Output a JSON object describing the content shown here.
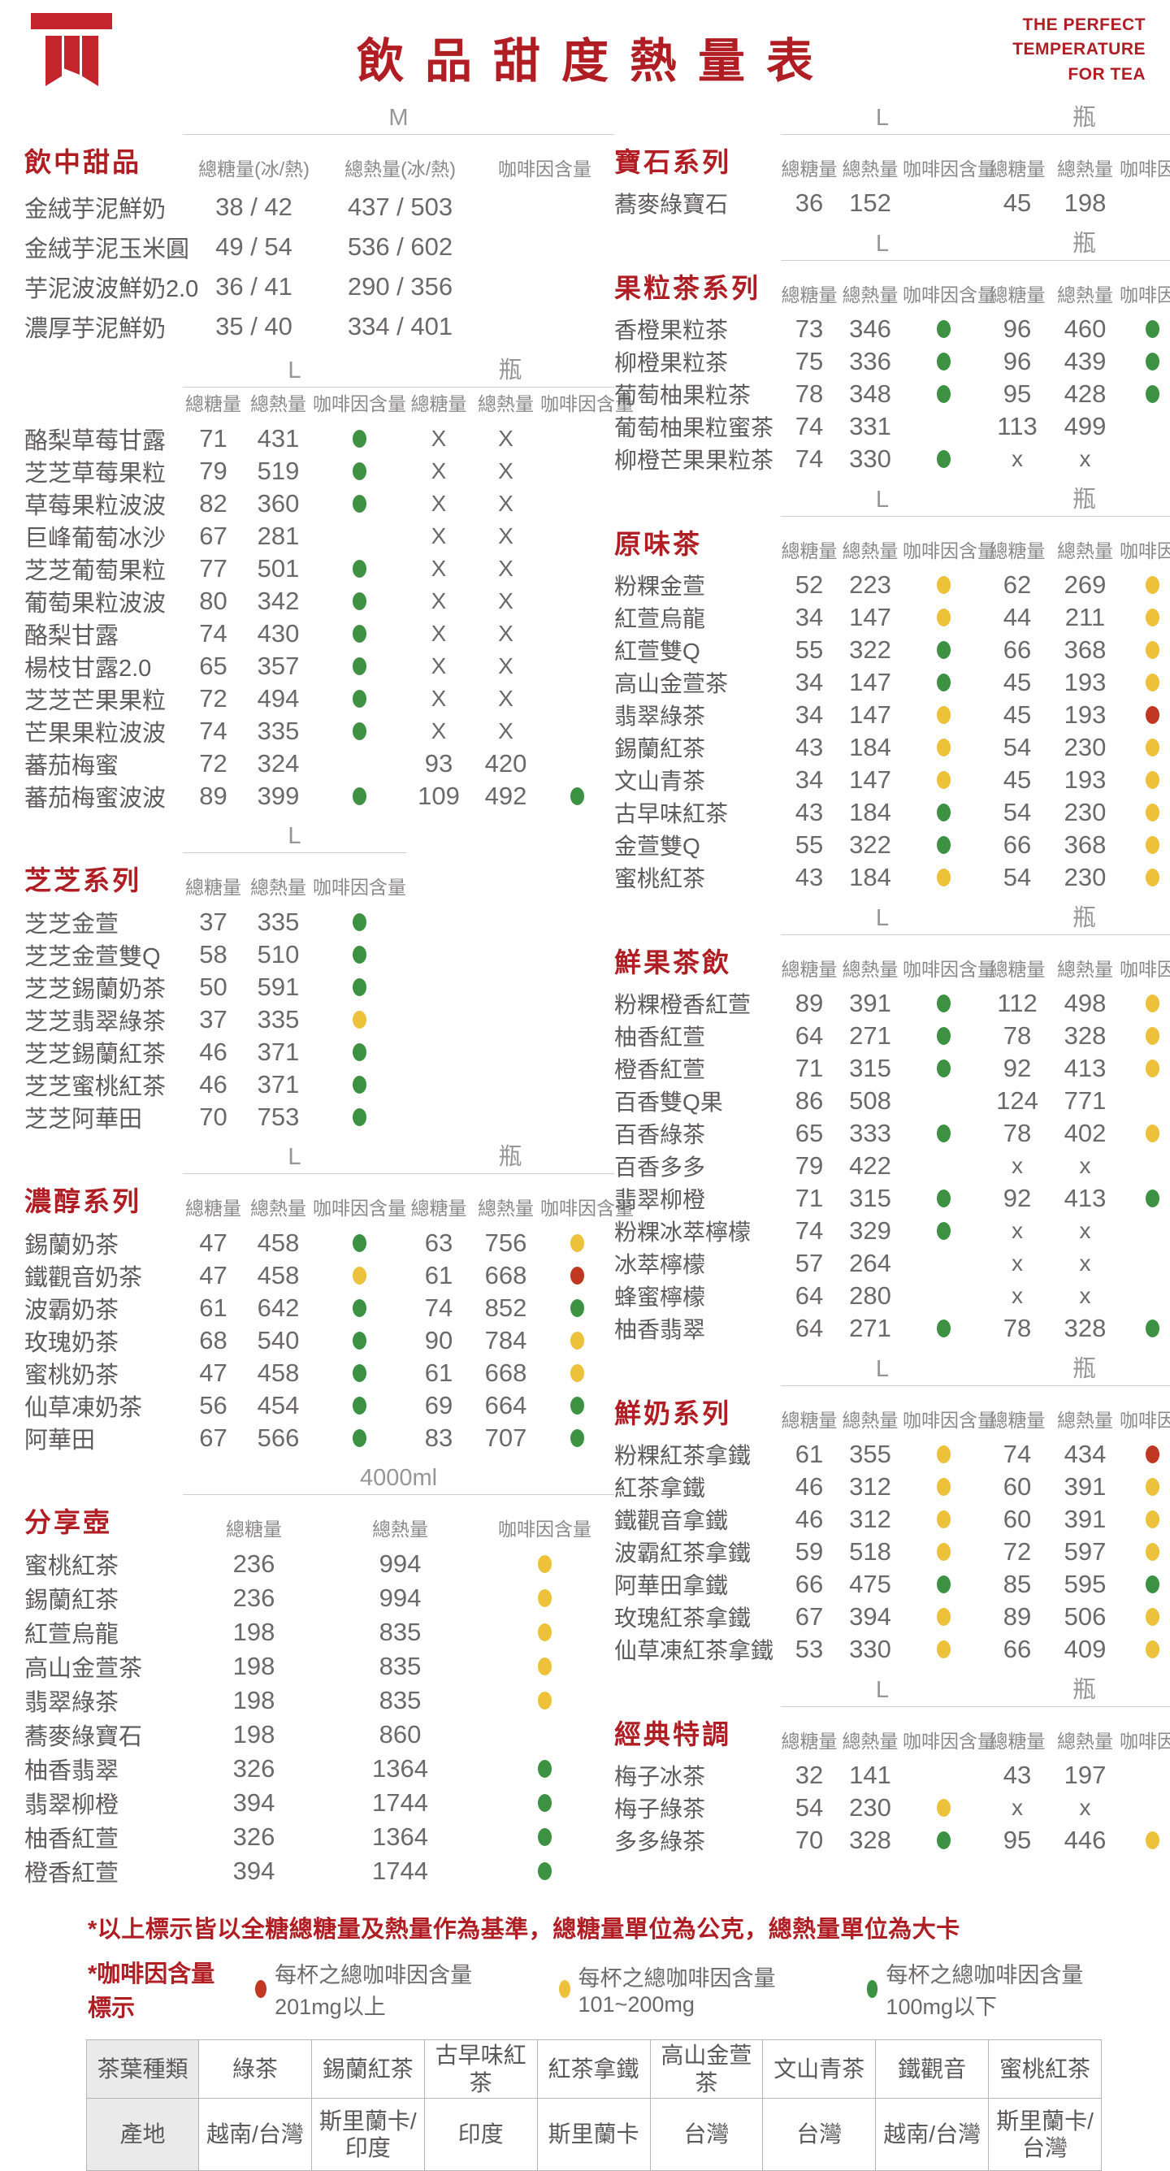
{
  "colors": {
    "brand_red": "#b01e24",
    "logo_red": "#c4242b",
    "g": "#3c9142",
    "y": "#eec13b",
    "r": "#c03722"
  },
  "header": {
    "title": "飲品甜度熱量表",
    "tagline": [
      "THE PERFECT",
      "TEMPERATURE",
      "FOR TEA"
    ]
  },
  "column_header_labels": {
    "sugar": "總糖量",
    "calorie": "總熱量",
    "caffeine": "咖啡因含量",
    "sugar_ih": "總糖量(冰/熱)",
    "calorie_ih": "總熱量(冰/熱)"
  },
  "left_sections": [
    {
      "title": "飲中甜品",
      "grid": "g-mw",
      "rowclass": "r-tall",
      "groups": [
        {
          "size": "M",
          "cols": [
            "總糖量(冰/熱)",
            "總熱量(冰/熱)",
            "咖啡因含量"
          ],
          "span": "2 / span 3"
        }
      ],
      "rows": [
        [
          "金絨芋泥鮮奶",
          "38 / 42",
          "437 / 503",
          ""
        ],
        [
          "金絨芋泥玉米圓",
          "49 / 54",
          "536 / 602",
          ""
        ],
        [
          "芋泥波波鮮奶2.0",
          "36 / 41",
          "290 / 356",
          ""
        ],
        [
          "濃厚芋泥鮮奶",
          "35 / 40",
          "334 / 401",
          ""
        ]
      ]
    },
    {
      "title": "",
      "grid": "g-ld",
      "rowclass": "",
      "groups": [
        {
          "size": "L",
          "cols": [
            "總糖量",
            "總熱量",
            "咖啡因含量"
          ],
          "span": "2 / span 3"
        },
        {
          "size": "瓶",
          "cols": [
            "總糖量",
            "總熱量",
            "咖啡因含量"
          ],
          "span": "5 / span 3"
        }
      ],
      "rows": [
        [
          "酪梨草莓甘露",
          "71",
          "431",
          "g",
          "X",
          "X",
          ""
        ],
        [
          "芝芝草莓果粒",
          "79",
          "519",
          "g",
          "X",
          "X",
          ""
        ],
        [
          "草莓果粒波波",
          "82",
          "360",
          "g",
          "X",
          "X",
          ""
        ],
        [
          "巨峰葡萄冰沙",
          "67",
          "281",
          "",
          "X",
          "X",
          ""
        ],
        [
          "芝芝葡萄果粒",
          "77",
          "501",
          "g",
          "X",
          "X",
          ""
        ],
        [
          "葡萄果粒波波",
          "80",
          "342",
          "g",
          "X",
          "X",
          ""
        ],
        [
          "酪梨甘露",
          "74",
          "430",
          "g",
          "X",
          "X",
          ""
        ],
        [
          "楊枝甘露2.0",
          "65",
          "357",
          "g",
          "X",
          "X",
          ""
        ],
        [
          "芝芝芒果果粒",
          "72",
          "494",
          "g",
          "X",
          "X",
          ""
        ],
        [
          "芒果果粒波波",
          "74",
          "335",
          "g",
          "X",
          "X",
          ""
        ],
        [
          "蕃茄梅蜜",
          "72",
          "324",
          "",
          "93",
          "420",
          ""
        ],
        [
          "蕃茄梅蜜波波",
          "89",
          "399",
          "g",
          "109",
          "492",
          "g"
        ]
      ]
    },
    {
      "title": "芝芝系列",
      "grid": "g-ls",
      "rowclass": "",
      "groups": [
        {
          "size": "L",
          "cols": [
            "總糖量",
            "總熱量",
            "咖啡因含量"
          ],
          "span": "2 / span 3"
        }
      ],
      "rows": [
        [
          "芝芝金萱",
          "37",
          "335",
          "g"
        ],
        [
          "芝芝金萱雙Q",
          "58",
          "510",
          "g"
        ],
        [
          "芝芝錫蘭奶茶",
          "50",
          "591",
          "g"
        ],
        [
          "芝芝翡翠綠茶",
          "37",
          "335",
          "y"
        ],
        [
          "芝芝錫蘭紅茶",
          "46",
          "371",
          "g"
        ],
        [
          "芝芝蜜桃紅茶",
          "46",
          "371",
          "g"
        ],
        [
          "芝芝阿華田",
          "70",
          "753",
          "g"
        ]
      ]
    },
    {
      "title": "濃醇系列",
      "grid": "g-ld",
      "rowclass": "",
      "groups": [
        {
          "size": "L",
          "cols": [
            "總糖量",
            "總熱量",
            "咖啡因含量"
          ],
          "span": "2 / span 3"
        },
        {
          "size": "瓶",
          "cols": [
            "總糖量",
            "總熱量",
            "咖啡因含量"
          ],
          "span": "5 / span 3"
        }
      ],
      "rows": [
        [
          "錫蘭奶茶",
          "47",
          "458",
          "g",
          "63",
          "756",
          "y"
        ],
        [
          "鐵觀音奶茶",
          "47",
          "458",
          "y",
          "61",
          "668",
          "r"
        ],
        [
          "波霸奶茶",
          "61",
          "642",
          "g",
          "74",
          "852",
          "g"
        ],
        [
          "玫瑰奶茶",
          "68",
          "540",
          "g",
          "90",
          "784",
          "y"
        ],
        [
          "蜜桃奶茶",
          "47",
          "458",
          "g",
          "61",
          "668",
          "y"
        ],
        [
          "仙草凍奶茶",
          "56",
          "454",
          "g",
          "69",
          "664",
          "g"
        ],
        [
          "阿華田",
          "67",
          "566",
          "g",
          "83",
          "707",
          "g"
        ]
      ]
    },
    {
      "title": "分享壺",
      "grid": "g-mw",
      "rowclass": "r-share",
      "groups": [
        {
          "size": "4000ml",
          "cols": [
            "總糖量",
            "總熱量",
            "咖啡因含量"
          ],
          "span": "2 / span 3"
        }
      ],
      "rows": [
        [
          "蜜桃紅茶",
          "236",
          "994",
          "y"
        ],
        [
          "錫蘭紅茶",
          "236",
          "994",
          "y"
        ],
        [
          "紅萱烏龍",
          "198",
          "835",
          "y"
        ],
        [
          "高山金萱茶",
          "198",
          "835",
          "y"
        ],
        [
          "翡翠綠茶",
          "198",
          "835",
          "y"
        ],
        [
          "蕎麥綠寶石",
          "198",
          "860",
          ""
        ],
        [
          "柚香翡翠",
          "326",
          "1364",
          "g"
        ],
        [
          "翡翠柳橙",
          "394",
          "1744",
          "g"
        ],
        [
          "柚香紅萱",
          "326",
          "1364",
          "g"
        ],
        [
          "橙香紅萱",
          "394",
          "1744",
          "g"
        ]
      ]
    }
  ],
  "right_sections": [
    {
      "title": "寶石系列",
      "grid": "g-rd",
      "rowclass": "",
      "groups": [
        {
          "size": "L",
          "cols": [
            "總糖量",
            "總熱量",
            "咖啡因含量"
          ],
          "span": "2 / span 3"
        },
        {
          "size": "瓶",
          "cols": [
            "總糖量",
            "總熱量",
            "咖啡因含量"
          ],
          "span": "5 / span 3"
        }
      ],
      "rows": [
        [
          "蕎麥綠寶石",
          "36",
          "152",
          "",
          "45",
          "198",
          ""
        ]
      ]
    },
    {
      "title": "果粒茶系列",
      "grid": "g-rd",
      "rowclass": "",
      "groups": [
        {
          "size": "L",
          "cols": [
            "總糖量",
            "總熱量",
            "咖啡因含量"
          ],
          "span": "2 / span 3"
        },
        {
          "size": "瓶",
          "cols": [
            "總糖量",
            "總熱量",
            "咖啡因含量"
          ],
          "span": "5 / span 3"
        }
      ],
      "rows": [
        [
          "香橙果粒茶",
          "73",
          "346",
          "g",
          "96",
          "460",
          "g"
        ],
        [
          "柳橙果粒茶",
          "75",
          "336",
          "g",
          "96",
          "439",
          "g"
        ],
        [
          "葡萄柚果粒茶",
          "78",
          "348",
          "g",
          "95",
          "428",
          "g"
        ],
        [
          "葡萄柚果粒蜜茶",
          "74",
          "331",
          "",
          "113",
          "499",
          ""
        ],
        [
          "柳橙芒果果粒茶",
          "74",
          "330",
          "g",
          "x",
          "x",
          ""
        ]
      ]
    },
    {
      "title": "原味茶",
      "grid": "g-rd",
      "rowclass": "",
      "groups": [
        {
          "size": "L",
          "cols": [
            "總糖量",
            "總熱量",
            "咖啡因含量"
          ],
          "span": "2 / span 3"
        },
        {
          "size": "瓶",
          "cols": [
            "總糖量",
            "總熱量",
            "咖啡因含量"
          ],
          "span": "5 / span 3"
        }
      ],
      "rows": [
        [
          "粉粿金萱",
          "52",
          "223",
          "y",
          "62",
          "269",
          "y"
        ],
        [
          "紅萱烏龍",
          "34",
          "147",
          "y",
          "44",
          "211",
          "y"
        ],
        [
          "紅萱雙Q",
          "55",
          "322",
          "g",
          "66",
          "368",
          "y"
        ],
        [
          "高山金萱茶",
          "34",
          "147",
          "g",
          "45",
          "193",
          "y"
        ],
        [
          "翡翠綠茶",
          "34",
          "147",
          "y",
          "45",
          "193",
          "r"
        ],
        [
          "錫蘭紅茶",
          "43",
          "184",
          "y",
          "54",
          "230",
          "y"
        ],
        [
          "文山青茶",
          "34",
          "147",
          "y",
          "45",
          "193",
          "y"
        ],
        [
          "古早味紅茶",
          "43",
          "184",
          "g",
          "54",
          "230",
          "y"
        ],
        [
          "金萱雙Q",
          "55",
          "322",
          "g",
          "66",
          "368",
          "y"
        ],
        [
          "蜜桃紅茶",
          "43",
          "184",
          "y",
          "54",
          "230",
          "y"
        ]
      ]
    },
    {
      "title": "鮮果茶飲",
      "grid": "g-rd",
      "rowclass": "",
      "groups": [
        {
          "size": "L",
          "cols": [
            "總糖量",
            "總熱量",
            "咖啡因含量"
          ],
          "span": "2 / span 3"
        },
        {
          "size": "瓶",
          "cols": [
            "總糖量",
            "總熱量",
            "咖啡因含量"
          ],
          "span": "5 / span 3"
        }
      ],
      "rows": [
        [
          "粉粿橙香紅萱",
          "89",
          "391",
          "g",
          "112",
          "498",
          "y"
        ],
        [
          "柚香紅萱",
          "64",
          "271",
          "g",
          "78",
          "328",
          "y"
        ],
        [
          "橙香紅萱",
          "71",
          "315",
          "g",
          "92",
          "413",
          "y"
        ],
        [
          "百香雙Q果",
          "86",
          "508",
          "",
          "124",
          "771",
          ""
        ],
        [
          "百香綠茶",
          "65",
          "333",
          "g",
          "78",
          "402",
          "y"
        ],
        [
          "百香多多",
          "79",
          "422",
          "",
          "x",
          "x",
          ""
        ],
        [
          "翡翠柳橙",
          "71",
          "315",
          "g",
          "92",
          "413",
          "g"
        ],
        [
          "粉粿冰萃檸檬",
          "74",
          "329",
          "g",
          "x",
          "x",
          ""
        ],
        [
          "冰萃檸檬",
          "57",
          "264",
          "",
          "x",
          "x",
          ""
        ],
        [
          "蜂蜜檸檬",
          "64",
          "280",
          "",
          "x",
          "x",
          ""
        ],
        [
          "柚香翡翠",
          "64",
          "271",
          "g",
          "78",
          "328",
          "g"
        ]
      ]
    },
    {
      "title": "鮮奶系列",
      "grid": "g-rd",
      "rowclass": "",
      "groups": [
        {
          "size": "L",
          "cols": [
            "總糖量",
            "總熱量",
            "咖啡因含量"
          ],
          "span": "2 / span 3"
        },
        {
          "size": "瓶",
          "cols": [
            "總糖量",
            "總熱量",
            "咖啡因含量"
          ],
          "span": "5 / span 3"
        }
      ],
      "rows": [
        [
          "粉粿紅茶拿鐵",
          "61",
          "355",
          "y",
          "74",
          "434",
          "r"
        ],
        [
          "紅茶拿鐵",
          "46",
          "312",
          "y",
          "60",
          "391",
          "y"
        ],
        [
          "鐵觀音拿鐵",
          "46",
          "312",
          "y",
          "60",
          "391",
          "y"
        ],
        [
          "波霸紅茶拿鐵",
          "59",
          "518",
          "y",
          "72",
          "597",
          "y"
        ],
        [
          "阿華田拿鐵",
          "66",
          "475",
          "g",
          "85",
          "595",
          "g"
        ],
        [
          "玫瑰紅茶拿鐵",
          "67",
          "394",
          "y",
          "89",
          "506",
          "y"
        ],
        [
          "仙草凍紅茶拿鐵",
          "53",
          "330",
          "y",
          "66",
          "409",
          "y"
        ]
      ]
    },
    {
      "title": "經典特調",
      "grid": "g-rd",
      "rowclass": "",
      "groups": [
        {
          "size": "L",
          "cols": [
            "總糖量",
            "總熱量",
            "咖啡因含量"
          ],
          "span": "2 / span 3"
        },
        {
          "size": "瓶",
          "cols": [
            "總糖量",
            "總熱量",
            "咖啡因含量"
          ],
          "span": "5 / span 3"
        }
      ],
      "rows": [
        [
          "梅子冰茶",
          "32",
          "141",
          "",
          "43",
          "197",
          ""
        ],
        [
          "梅子綠茶",
          "54",
          "230",
          "y",
          "x",
          "x",
          ""
        ],
        [
          "多多綠茶",
          "70",
          "328",
          "g",
          "95",
          "446",
          "y"
        ]
      ]
    }
  ],
  "footnotes": {
    "note1": "*以上標示皆以全糖總糖量及熱量作為基準，總糖量單位為公克，總熱量單位為大卡",
    "note2_label": "*咖啡因含量標示",
    "legend": [
      {
        "dot": "r",
        "text": "每杯之總咖啡因含量201mg以上"
      },
      {
        "dot": "y",
        "text": "每杯之總咖啡因含量101~200mg"
      },
      {
        "dot": "g",
        "text": "每杯之總咖啡因含量100mg以下"
      }
    ]
  },
  "origin_table": {
    "rows": [
      [
        "茶葉種類",
        "綠茶",
        "錫蘭紅茶",
        "古早味紅茶",
        "紅茶拿鐵",
        "高山金萱茶",
        "文山青茶",
        "鐵觀音",
        "蜜桃紅茶"
      ],
      [
        "產地",
        "越南/台灣",
        "斯里蘭卡/印度",
        "印度",
        "斯里蘭卡",
        "台灣",
        "台灣",
        "越南/台灣",
        "斯里蘭卡/台灣"
      ]
    ]
  }
}
